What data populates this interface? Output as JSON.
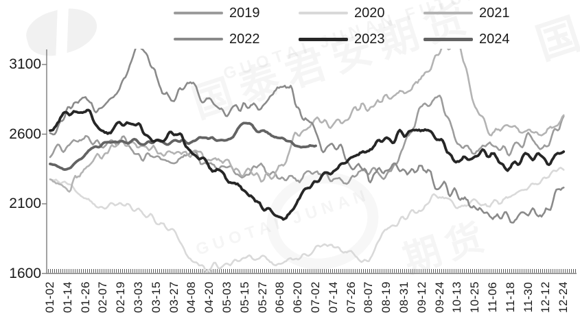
{
  "watermarks": {
    "brand_cn": "国泰君安期货",
    "brand_en": "GUOTAI JUNAN FUTURES",
    "brand_en_short": "GUOTAI JUNAN",
    "partial_cn_low": "期货",
    "partial_cn_corner": "国"
  },
  "chart_data": {
    "type": "line",
    "title": "",
    "xlabel": "",
    "ylabel": "",
    "grid": false,
    "legend_position": "top",
    "ylim": [
      1600,
      3100
    ],
    "y_ticks": [
      3100,
      2600,
      2100,
      1600
    ],
    "x_labels": [
      "01-02",
      "01-14",
      "01-26",
      "02-07",
      "02-19",
      "03-03",
      "03-15",
      "03-27",
      "04-08",
      "04-20",
      "05-03",
      "05-15",
      "05-27",
      "06-08",
      "06-20",
      "07-02",
      "07-14",
      "07-26",
      "08-07",
      "08-19",
      "08-31",
      "09-12",
      "09-24",
      "10-13",
      "10-25",
      "11-06",
      "11-18",
      "11-30",
      "12-12",
      "12-24"
    ],
    "axis_color": "#7a7a7a",
    "text_color": "#1a1a1a",
    "series": [
      {
        "name": "2019",
        "color": "#9c9c9c",
        "width": 2.6,
        "z": 2,
        "noise": 20,
        "values": [
          2450,
          2520,
          2550,
          2520,
          2550,
          2450,
          2400,
          2420,
          2450,
          2400,
          2350,
          2320,
          2350,
          2300,
          2280,
          2320,
          2280,
          2300,
          2350,
          2300,
          2500,
          2780,
          2850,
          2550,
          2480,
          2530,
          2480,
          2550,
          2520,
          2670
        ]
      },
      {
        "name": "2020",
        "color": "#d9d9d9",
        "width": 2.6,
        "z": 1,
        "noise": 14,
        "values": [
          2290,
          2220,
          2150,
          2080,
          2120,
          2050,
          1980,
          1900,
          1700,
          1640,
          1680,
          1720,
          1700,
          1680,
          1720,
          1760,
          1800,
          1730,
          1700,
          1930,
          2000,
          2080,
          2150,
          2080,
          2120,
          2100,
          2160,
          2220,
          2290,
          2340
        ]
      },
      {
        "name": "2021",
        "color": "#b3b3b3",
        "width": 2.6,
        "z": 3,
        "noise": 22,
        "values": [
          2300,
          2200,
          2350,
          2450,
          2550,
          2520,
          2480,
          2450,
          2480,
          2420,
          2380,
          2330,
          2300,
          2350,
          2600,
          2700,
          2700,
          2750,
          2830,
          2860,
          2870,
          2990,
          3200,
          3250,
          2800,
          2620,
          2680,
          2600,
          2640,
          2690
        ]
      },
      {
        "name": "2022",
        "color": "#8a8a8a",
        "width": 2.6,
        "z": 4,
        "noise": 24,
        "values": [
          2640,
          2780,
          2860,
          2800,
          2920,
          3250,
          3000,
          2900,
          2950,
          2820,
          2760,
          2840,
          2780,
          2950,
          2820,
          2560,
          2500,
          2420,
          2300,
          2350,
          2300,
          2330,
          2250,
          2160,
          2100,
          2030,
          1990,
          2020,
          2100,
          2230
        ]
      },
      {
        "name": "2023",
        "color": "#262626",
        "width": 3.8,
        "z": 6,
        "noise": 16,
        "values": [
          2650,
          2740,
          2770,
          2620,
          2680,
          2650,
          2560,
          2600,
          2480,
          2360,
          2280,
          2200,
          2080,
          1980,
          2130,
          2250,
          2330,
          2400,
          2500,
          2550,
          2600,
          2620,
          2550,
          2400,
          2430,
          2450,
          2370,
          2440,
          2400,
          2440
        ]
      },
      {
        "name": "2024",
        "color": "#636363",
        "width": 3.8,
        "z": 5,
        "noise": 8,
        "values": [
          2400,
          2340,
          2460,
          2540,
          2545,
          2540,
          2550,
          2540,
          2550,
          2570,
          2560,
          2660,
          2620,
          2580,
          2520,
          2515,
          null,
          null,
          null,
          null,
          null,
          null,
          null,
          null,
          null,
          null,
          null,
          null,
          null,
          null
        ]
      }
    ]
  }
}
